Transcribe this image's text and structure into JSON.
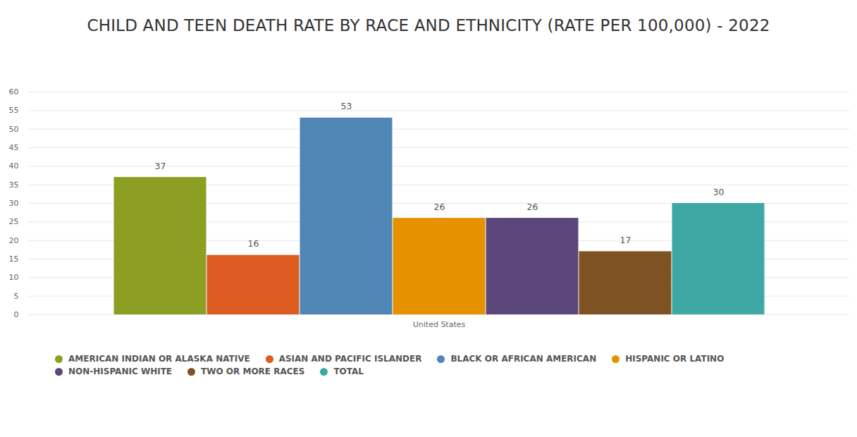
{
  "chart_data": {
    "type": "bar",
    "title": "CHILD AND TEEN DEATH RATE BY RACE AND ETHNICITY (RATE PER 100,000) - 2022",
    "categories": [
      "United States"
    ],
    "series": [
      {
        "name": "AMERICAN INDIAN OR ALASKA NATIVE",
        "color": "#8c9f24",
        "values": [
          37
        ]
      },
      {
        "name": "ASIAN AND PACIFIC ISLANDER",
        "color": "#dd5b21",
        "values": [
          16
        ]
      },
      {
        "name": "BLACK OR AFRICAN AMERICAN",
        "color": "#4f86b5",
        "values": [
          53
        ]
      },
      {
        "name": "HISPANIC OR LATINO",
        "color": "#e69200",
        "values": [
          26
        ]
      },
      {
        "name": "NON-HISPANIC WHITE",
        "color": "#5b477a",
        "values": [
          26
        ]
      },
      {
        "name": "TWO OR MORE RACES",
        "color": "#7f5223",
        "values": [
          17
        ]
      },
      {
        "name": "TOTAL",
        "color": "#3fa8a4",
        "values": [
          30
        ]
      }
    ],
    "ylim": [
      0,
      60
    ],
    "yticks": [
      0,
      5,
      10,
      15,
      20,
      25,
      30,
      35,
      40,
      45,
      50,
      55,
      60
    ],
    "grid": true,
    "data_labels": true,
    "legend": "bottom"
  }
}
